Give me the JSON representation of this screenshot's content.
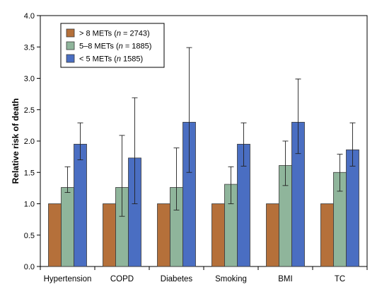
{
  "chart_data": {
    "type": "bar",
    "title": "",
    "xlabel": "",
    "ylabel": "Relative risk of death",
    "ylim": [
      0,
      4.0
    ],
    "yticks": [
      "0.0",
      "0.5",
      "1.0",
      "1.5",
      "2.0",
      "2.5",
      "3.0",
      "3.5",
      "4.0"
    ],
    "categories": [
      "Hypertension",
      "COPD",
      "Diabetes",
      "Smoking",
      "BMI",
      "TC"
    ],
    "grid": false,
    "legend_position": "top-left",
    "series": [
      {
        "name": "> 8 METs (n = 2743)",
        "legend": {
          "prefix": "> 8 METs (",
          "n": "n",
          "suffix": " = 2743)"
        },
        "color": "#b5703a",
        "values": [
          1.0,
          1.0,
          1.0,
          1.0,
          1.0,
          1.0
        ],
        "err_low": [
          null,
          null,
          null,
          null,
          null,
          null
        ],
        "err_high": [
          null,
          null,
          null,
          null,
          null,
          null
        ]
      },
      {
        "name": "5-8 METs (n = 1885)",
        "legend": {
          "prefix": "5–8 METs (",
          "n": "n",
          "suffix": " = 1885)"
        },
        "color": "#8fb59b",
        "values": [
          1.26,
          1.26,
          1.26,
          1.31,
          1.61,
          1.5
        ],
        "err_low": [
          1.18,
          0.8,
          0.9,
          1.0,
          1.29,
          1.2
        ],
        "err_high": [
          1.59,
          2.09,
          1.89,
          1.59,
          2.0,
          1.79
        ]
      },
      {
        "name": "< 5 METs (n 1585)",
        "legend": {
          "prefix": "< 5 METs (",
          "n": "n",
          "suffix": " 1585)"
        },
        "color": "#4a6ec2",
        "values": [
          1.95,
          1.73,
          2.3,
          1.95,
          2.3,
          1.86
        ],
        "err_low": [
          1.7,
          1.0,
          1.5,
          1.6,
          1.8,
          1.6
        ],
        "err_high": [
          2.29,
          2.69,
          3.49,
          2.29,
          2.99,
          2.29
        ]
      }
    ]
  }
}
